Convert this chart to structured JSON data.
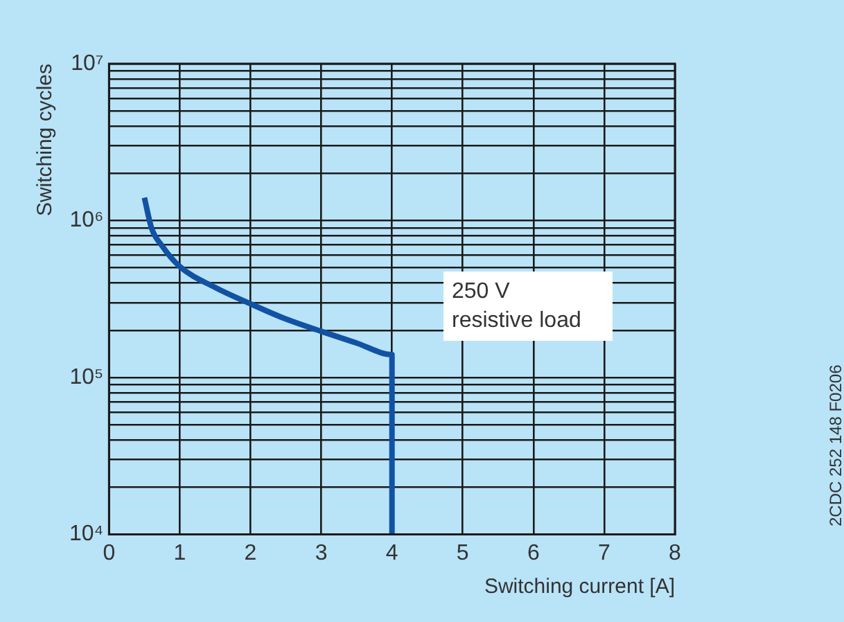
{
  "chart_data": {
    "type": "line",
    "xlabel": "Switching current [A]",
    "ylabel": "Switching cycles",
    "x": [
      0.5,
      0.6,
      0.75,
      1,
      1.5,
      2,
      2.5,
      3,
      3.5,
      4,
      4
    ],
    "series": [
      {
        "color": "#1152a3",
        "values": [
          1400000,
          900000,
          690000,
          510000,
          375000,
          295000,
          236000,
          197000,
          166000,
          140000,
          10000
        ]
      }
    ],
    "xlim": [
      0,
      8
    ],
    "xticks": [
      0,
      1,
      2,
      3,
      4,
      5,
      6,
      7,
      8
    ],
    "ylim": [
      10000,
      10000000
    ],
    "log": "y",
    "yticks": [
      {
        "value": 10000,
        "label": "10⁴"
      },
      {
        "value": 20000,
        "label": null
      },
      {
        "value": 30000,
        "label": null
      },
      {
        "value": 40000,
        "label": null
      },
      {
        "value": 50000,
        "label": null
      },
      {
        "value": 60000,
        "label": null
      },
      {
        "value": 70000,
        "label": null
      },
      {
        "value": 80000,
        "label": null
      },
      {
        "value": 90000,
        "label": null
      },
      {
        "value": 100000,
        "label": "10⁵"
      },
      {
        "value": 200000,
        "label": null
      },
      {
        "value": 300000,
        "label": null
      },
      {
        "value": 400000,
        "label": null
      },
      {
        "value": 500000,
        "label": null
      },
      {
        "value": 600000,
        "label": null
      },
      {
        "value": 700000,
        "label": null
      },
      {
        "value": 800000,
        "label": null
      },
      {
        "value": 900000,
        "label": null
      },
      {
        "value": 1000000,
        "label": "10⁶"
      },
      {
        "value": 2000000,
        "label": null
      },
      {
        "value": 3000000,
        "label": null
      },
      {
        "value": 4000000,
        "label": null
      },
      {
        "value": 5000000,
        "label": null
      },
      {
        "value": 6000000,
        "label": null
      },
      {
        "value": 7000000,
        "label": null
      },
      {
        "value": 8000000,
        "label": null
      },
      {
        "value": 9000000,
        "label": null
      },
      {
        "value": 10000000,
        "label": "10⁷"
      }
    ],
    "grid": true,
    "marker": "none",
    "line_style": "solid",
    "annotations": [
      "250 V\nresistive load",
      "2CDC 252 148 F0206"
    ]
  }
}
